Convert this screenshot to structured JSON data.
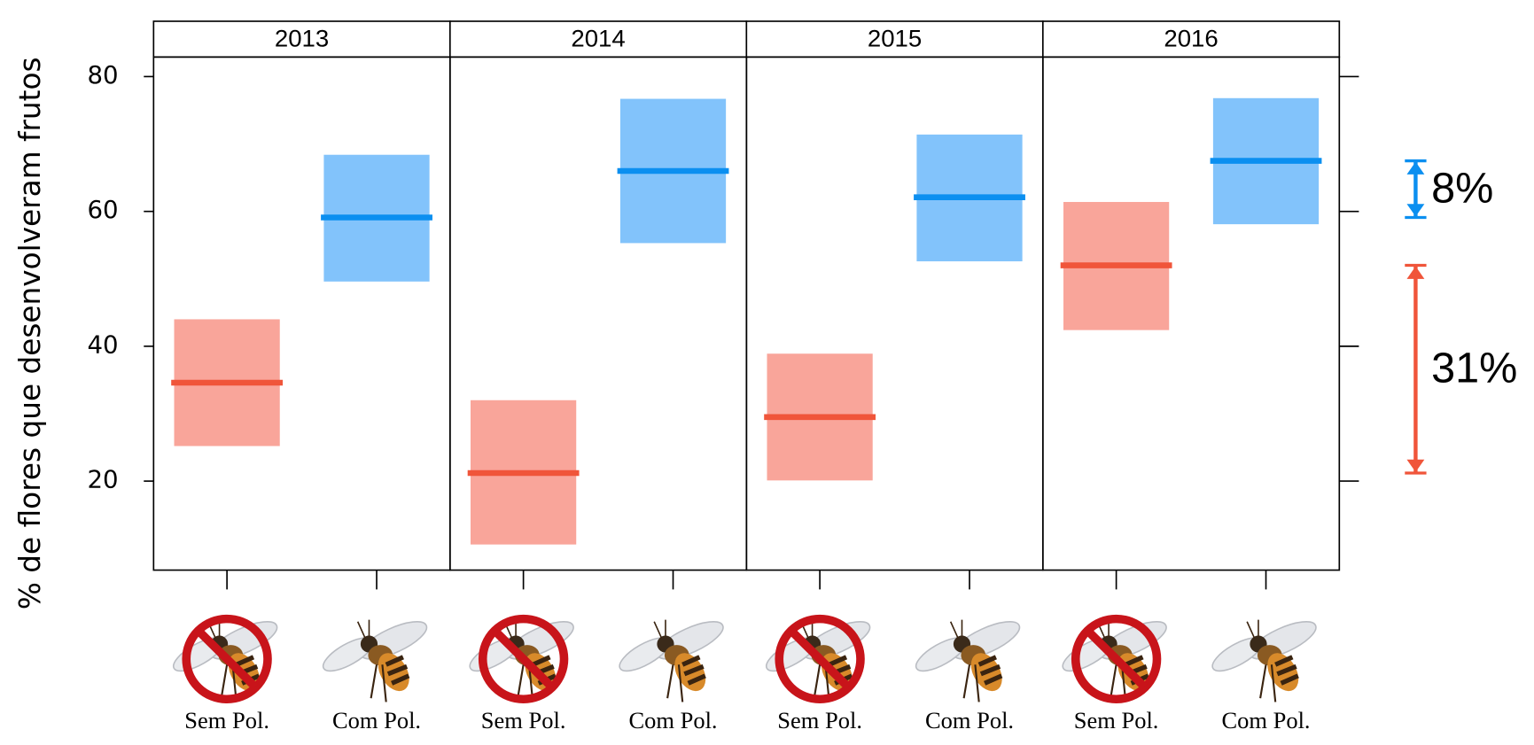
{
  "chart_data": {
    "type": "interval",
    "ylabel": "% de flores que desenvolveram frutos",
    "panels": [
      "2013",
      "2014",
      "2015",
      "2016"
    ],
    "ylim": [
      6.8,
      82.9
    ],
    "yticks": [
      20,
      40,
      60,
      80
    ],
    "series": [
      {
        "name": "Sem Pol.",
        "color": "#f0553a",
        "box_color": "#f9a59a",
        "mean": [
          34.6,
          21.2,
          29.5,
          52.0
        ],
        "lower": [
          25.2,
          10.6,
          20.1,
          42.4
        ],
        "upper": [
          44.0,
          32.0,
          38.9,
          61.4
        ]
      },
      {
        "name": "Com Pol.",
        "color": "#0b8ff0",
        "box_color": "#82c3fb",
        "mean": [
          59.1,
          66.0,
          62.1,
          67.5
        ],
        "lower": [
          49.6,
          55.3,
          52.6,
          58.1
        ],
        "upper": [
          68.4,
          76.7,
          71.4,
          76.8
        ]
      }
    ],
    "annotations": [
      {
        "text": "8%",
        "from": 67.5,
        "to": 59.1,
        "color": "#0b8ff0"
      },
      {
        "text": "31%",
        "from": 52.0,
        "to": 21.2,
        "color": "#f0553a"
      }
    ]
  }
}
